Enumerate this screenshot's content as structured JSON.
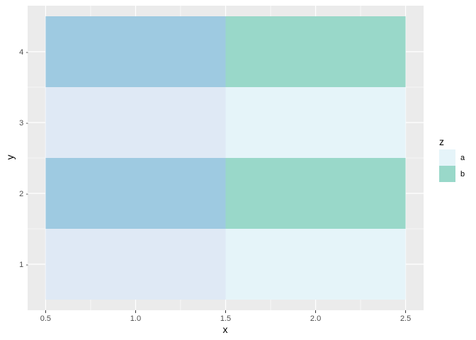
{
  "chart_data": {
    "type": "heatmap",
    "title": "",
    "xlabel": "x",
    "ylabel": "y",
    "xlim": [
      0.4,
      2.6
    ],
    "ylim": [
      0.35,
      4.65
    ],
    "x_ticks": [
      0.5,
      1.0,
      1.5,
      2.0,
      2.5
    ],
    "x_tick_labels": [
      "0.5",
      "1.0",
      "1.5",
      "2.0",
      "2.5"
    ],
    "y_ticks": [
      1,
      2,
      3,
      4
    ],
    "y_tick_labels": [
      "1 -",
      "2 -",
      "3 -",
      "4 -"
    ],
    "grid": true,
    "legend": {
      "title": "z",
      "position": "right",
      "entries": [
        {
          "label": "a",
          "color": "#E5F4F9"
        },
        {
          "label": "b",
          "color": "#99D8C9"
        }
      ]
    },
    "tiles": [
      {
        "x": 1,
        "y": 1,
        "z": "a",
        "color": "#DFE9F5"
      },
      {
        "x": 2,
        "y": 1,
        "z": "a",
        "color": "#E5F4F9"
      },
      {
        "x": 1,
        "y": 2,
        "z": "b",
        "color": "#9ECAE1"
      },
      {
        "x": 2,
        "y": 2,
        "z": "b",
        "color": "#99D8C9"
      },
      {
        "x": 1,
        "y": 3,
        "z": "a",
        "color": "#DFE9F5"
      },
      {
        "x": 2,
        "y": 3,
        "z": "a",
        "color": "#E5F4F9"
      },
      {
        "x": 1,
        "y": 4,
        "z": "b",
        "color": "#9ECAE1"
      },
      {
        "x": 2,
        "y": 4,
        "z": "b",
        "color": "#99D8C9"
      }
    ],
    "tile_width": 1,
    "tile_height": 1,
    "panel_color": "#EBEBEB",
    "grid_color": "#FFFFFF"
  }
}
